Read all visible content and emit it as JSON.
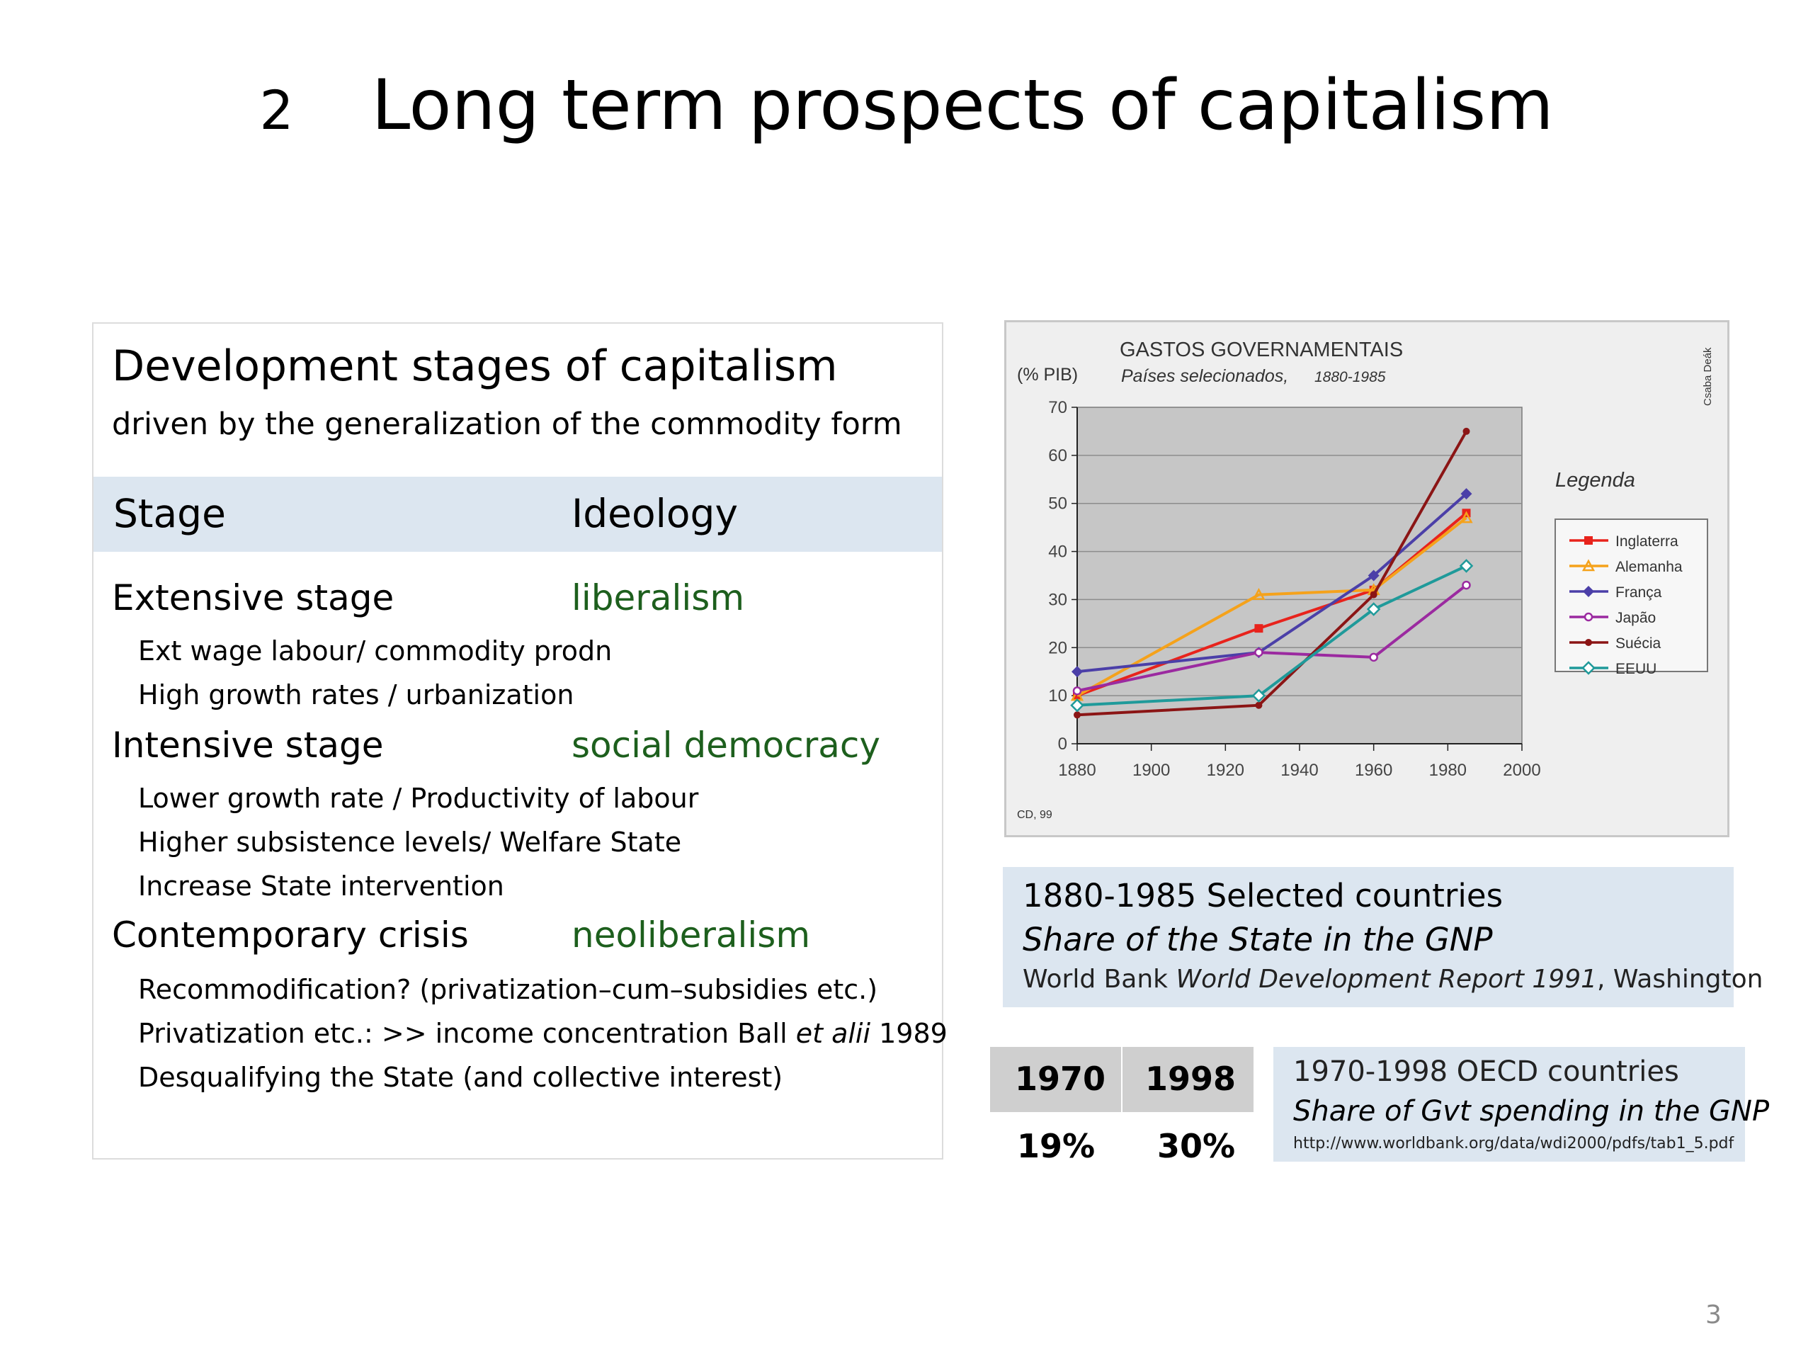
{
  "slide": {
    "number": "2",
    "title": "Long term prospects of capitalism",
    "page": "3"
  },
  "stages_card": {
    "title": "Development stages of capitalism",
    "subtitle": "driven by the generalization of the commodity form",
    "header": {
      "stage": "Stage",
      "ideology": "Ideology"
    },
    "rows": [
      {
        "stage": "Extensive stage",
        "ideology": "liberalism",
        "points": [
          "Ext wage labour/ commodity prodn",
          "High growth rates / urbanization"
        ]
      },
      {
        "stage": "Intensive stage",
        "ideology": "social democracy",
        "points": [
          "Lower growth rate / Productivity of labour",
          "Higher subsistence levels/ Welfare State",
          "Increase State intervention"
        ]
      },
      {
        "stage": "Contemporary crisis",
        "ideology": "neoliberalism",
        "points": [
          "Recommodification? (privatization–cum–subsidies etc.)",
          {
            "before": "Privatization etc.:  >> income concentration Ball ",
            "italic": "et alii",
            "after": " 1989"
          },
          "Desqualifying the State (and collective interest)"
        ]
      }
    ],
    "ideology_color": "#1d5f1d"
  },
  "chart_data": {
    "type": "line",
    "title": "GASTOS GOVERNAMENTAIS",
    "subtitle": "Países selecionados,",
    "subtitle_years": "1880-1985",
    "ylabel": "(% PIB)",
    "credit_vertical": "Csaba Deák",
    "source_note": "CD, 99",
    "legend_title": "Legenda",
    "legend_position": "right",
    "xlim": [
      1880,
      2000
    ],
    "ylim": [
      0,
      70
    ],
    "xticks": [
      1880,
      1900,
      1920,
      1940,
      1960,
      1980,
      2000
    ],
    "yticks": [
      0,
      10,
      20,
      30,
      40,
      50,
      60,
      70
    ],
    "grid": true,
    "series": [
      {
        "name": "Inglaterra",
        "color": "#e8231c",
        "marker": "square",
        "x": [
          1880,
          1929,
          1960,
          1985
        ],
        "y": [
          10,
          24,
          32,
          48
        ]
      },
      {
        "name": "Alemanha",
        "color": "#f5a21b",
        "marker": "triangle",
        "x": [
          1880,
          1929,
          1960,
          1985
        ],
        "y": [
          10,
          31,
          32,
          47
        ]
      },
      {
        "name": "França",
        "color": "#4b3fa8",
        "marker": "diamond",
        "x": [
          1880,
          1929,
          1960,
          1985
        ],
        "y": [
          15,
          19,
          35,
          52
        ]
      },
      {
        "name": "Japão",
        "color": "#9b2aa0",
        "marker": "circle",
        "x": [
          1880,
          1929,
          1960,
          1985
        ],
        "y": [
          11,
          19,
          18,
          33
        ]
      },
      {
        "name": "Suécia",
        "color": "#8b1515",
        "marker": "dot",
        "x": [
          1880,
          1929,
          1960,
          1985
        ],
        "y": [
          6,
          8,
          31,
          65
        ]
      },
      {
        "name": "EEUU",
        "color": "#1f9a9a",
        "marker": "diamond-open",
        "x": [
          1880,
          1929,
          1960,
          1985
        ],
        "y": [
          8,
          10,
          28,
          37
        ]
      }
    ]
  },
  "caption1": {
    "line1": "1880-1985 Selected countries",
    "line2": "Share of the State in the GNP",
    "line3_before": "World Bank ",
    "line3_italic": "World Development Report 1991",
    "line3_after": ", Washington"
  },
  "oecd_table": {
    "headers": [
      "1970",
      "1998"
    ],
    "values": [
      "19%",
      "30%"
    ]
  },
  "caption2": {
    "line1": "1970-1998 OECD countries",
    "line2": "Share of Gvt spending in the GNP",
    "line3": "http://www.worldbank.org/data/wdi2000/pdfs/tab1_5.pdf"
  }
}
